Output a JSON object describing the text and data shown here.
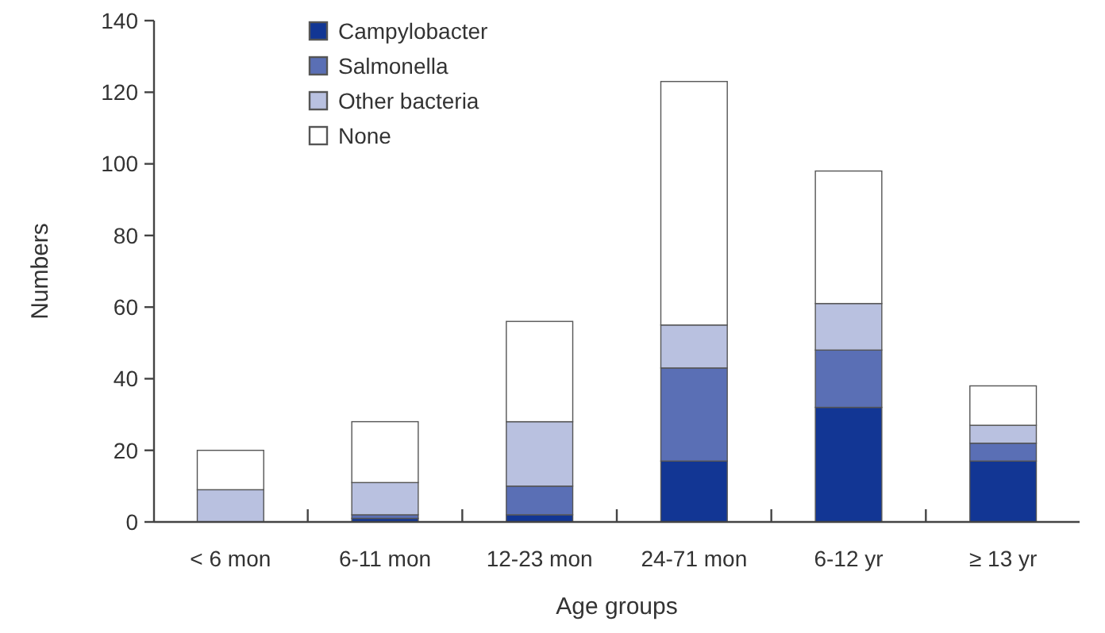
{
  "chart_data": {
    "type": "bar",
    "stacked": true,
    "xlabel": "Age groups",
    "ylabel": "Numbers",
    "categories": [
      "< 6 mon",
      "6-11 mon",
      "12-23 mon",
      "24-71 mon",
      "6-12 yr",
      "≥ 13 yr"
    ],
    "series": [
      {
        "name": "Campylobacter",
        "color": "#123694",
        "values": [
          0,
          1,
          2,
          17,
          32,
          17
        ]
      },
      {
        "name": "Salmonella",
        "color": "#5a6fb5",
        "values": [
          0,
          1,
          8,
          26,
          16,
          5
        ]
      },
      {
        "name": "Other bacteria",
        "color": "#b9c1e0",
        "values": [
          9,
          9,
          18,
          12,
          13,
          5
        ]
      },
      {
        "name": "None",
        "color": "#ffffff",
        "values": [
          11,
          17,
          28,
          68,
          37,
          11
        ]
      }
    ],
    "ylim": [
      0,
      140
    ],
    "yticks": [
      0,
      20,
      40,
      60,
      80,
      100,
      120,
      140
    ],
    "grid": false,
    "legend": "top left"
  }
}
